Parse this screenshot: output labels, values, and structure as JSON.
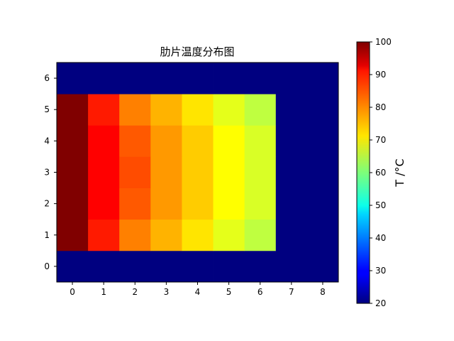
{
  "chart_data": {
    "type": "heatmap",
    "title": "肋片温度分布图",
    "x_ticks": [
      "0",
      "1",
      "2",
      "3",
      "4",
      "5",
      "6",
      "7",
      "8"
    ],
    "y_ticks": [
      "0",
      "1",
      "2",
      "3",
      "4",
      "5",
      "6"
    ],
    "xlim": [
      -0.5,
      8.5
    ],
    "ylim": [
      -0.5,
      6.5
    ],
    "grid": false,
    "colormap": "jet",
    "color_range": [
      20,
      100
    ],
    "values_rows_y0_to_y6": [
      [
        20,
        20,
        20,
        20,
        20,
        20,
        20,
        20,
        20
      ],
      [
        100,
        88,
        80,
        76,
        72,
        68,
        65,
        20,
        20
      ],
      [
        100,
        90,
        83,
        78,
        74,
        70,
        67,
        20,
        20
      ],
      [
        100,
        90,
        84,
        78,
        74,
        70,
        67,
        20,
        20
      ],
      [
        100,
        90,
        83,
        78,
        74,
        70,
        67,
        20,
        20
      ],
      [
        100,
        88,
        80,
        76,
        72,
        68,
        65,
        20,
        20
      ],
      [
        20,
        20,
        20,
        20,
        20,
        20,
        20,
        20,
        20
      ]
    ],
    "colorbar": {
      "label": "T  /°C",
      "ticks": [
        "20",
        "30",
        "40",
        "50",
        "60",
        "70",
        "80",
        "90",
        "100"
      ]
    }
  }
}
